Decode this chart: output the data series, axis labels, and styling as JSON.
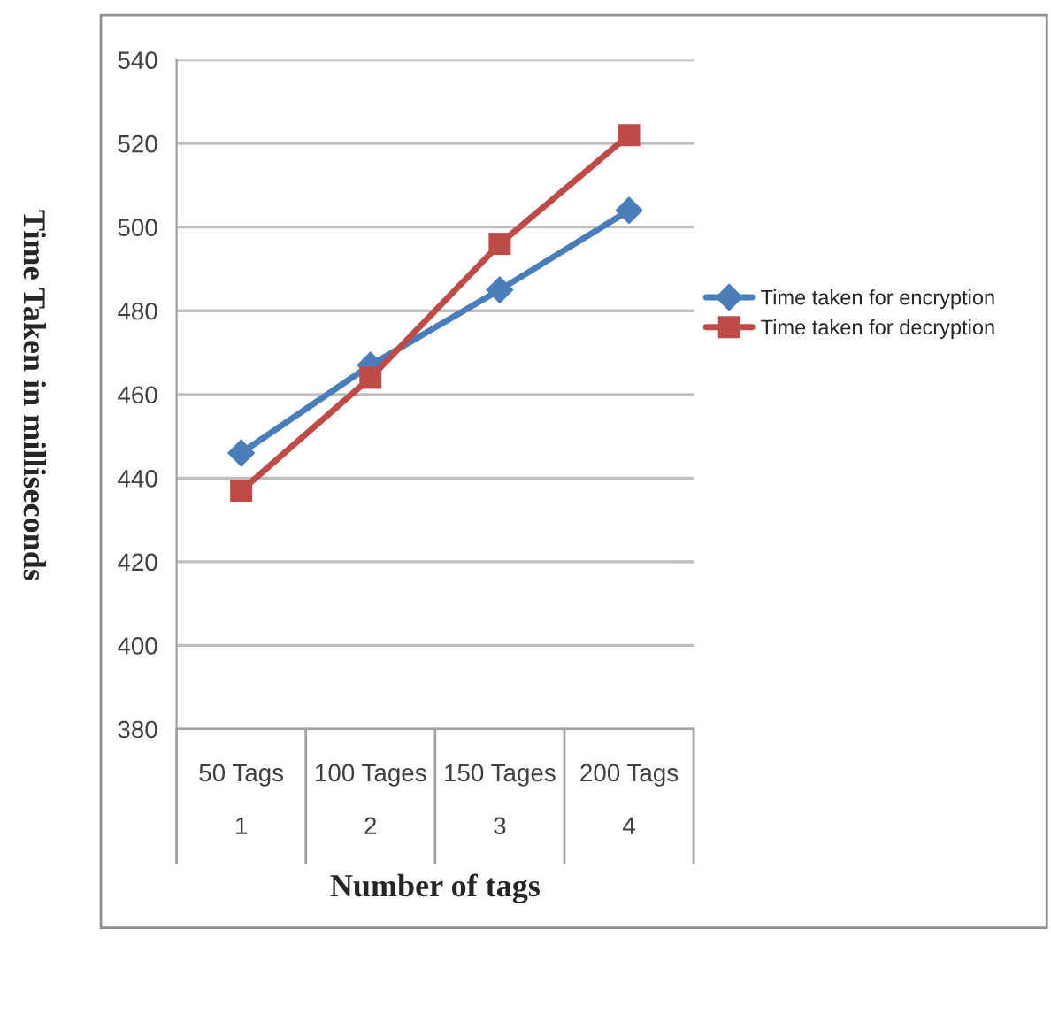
{
  "chart_data": {
    "type": "line",
    "xlabel": "Number of tags",
    "ylabel": "Time Taken in milliseconds",
    "categories": [
      "50 Tags\n\n1",
      "100 Tages\n\n2",
      "150 Tages\n\n3",
      "200 Tags\n\n4"
    ],
    "series": [
      {
        "name": "Time taken for encryption",
        "color": "#4a7ebb",
        "values": [
          446,
          467,
          485,
          504
        ],
        "marker": "diamond"
      },
      {
        "name": "Time taken for decryption",
        "color": "#be4b48",
        "values": [
          437,
          464,
          496,
          522
        ],
        "marker": "square"
      }
    ],
    "ylim": [
      380,
      540
    ],
    "yticks": [
      380,
      400,
      420,
      440,
      460,
      480,
      500,
      520,
      540
    ],
    "grid": "y",
    "legend": "right",
    "line_style": "solid"
  }
}
